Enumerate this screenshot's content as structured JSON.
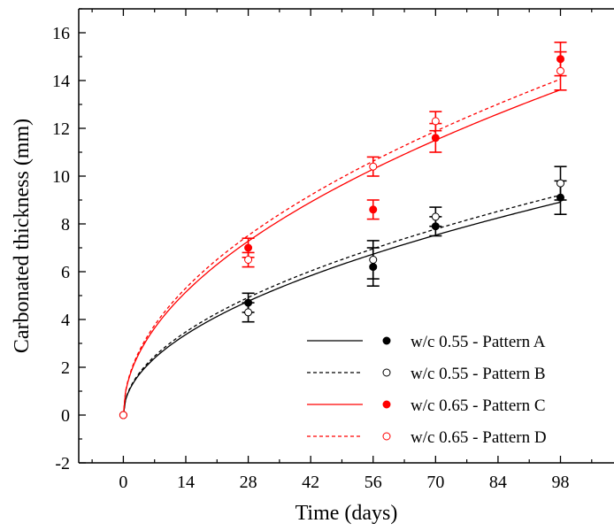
{
  "chart_data": {
    "type": "scatter",
    "xlabel": "Time (days)",
    "ylabel": "Carbonated thickness (mm)",
    "xlim": [
      -10,
      110
    ],
    "ylim": [
      -2,
      17
    ],
    "xticks": [
      0,
      14,
      28,
      42,
      56,
      70,
      84,
      98
    ],
    "yticks": [
      -2,
      0,
      2,
      4,
      6,
      8,
      10,
      12,
      14,
      16
    ],
    "grid": false,
    "legend_position": "bottom-right",
    "series": [
      {
        "name": "w/c 0.55 - Pattern A",
        "color": "#000000",
        "marker": "filled-circle",
        "line": "solid",
        "points": [
          {
            "x": 0,
            "y": 0
          },
          {
            "x": 28,
            "y": 4.7,
            "err": 0.4
          },
          {
            "x": 56,
            "y": 6.2,
            "err": 0.8
          },
          {
            "x": 70,
            "y": 7.9,
            "err": 0.4
          },
          {
            "x": 98,
            "y": 9.1,
            "err": 0.7
          }
        ],
        "fit": {
          "type": "sqrt",
          "k": 0.9
        }
      },
      {
        "name": "w/c 0.55 - Pattern B",
        "color": "#000000",
        "marker": "open-circle",
        "line": "dashed",
        "points": [
          {
            "x": 0,
            "y": 0
          },
          {
            "x": 28,
            "y": 4.3,
            "err": 0.4
          },
          {
            "x": 56,
            "y": 6.5,
            "err": 0.8
          },
          {
            "x": 70,
            "y": 8.3,
            "err": 0.4
          },
          {
            "x": 98,
            "y": 9.7,
            "err": 0.7
          }
        ],
        "fit": {
          "type": "sqrt",
          "k": 0.93
        }
      },
      {
        "name": "w/c 0.65 - Pattern C",
        "color": "#ff0000",
        "marker": "filled-circle",
        "line": "solid",
        "points": [
          {
            "x": 0,
            "y": 0
          },
          {
            "x": 28,
            "y": 7.0,
            "err": 0.4
          },
          {
            "x": 56,
            "y": 8.6,
            "err": 0.4
          },
          {
            "x": 70,
            "y": 11.6,
            "err": 0.6
          },
          {
            "x": 98,
            "y": 14.9,
            "err": 0.7
          }
        ],
        "fit": {
          "type": "sqrt",
          "k": 1.375
        }
      },
      {
        "name": "w/c 0.65 - Pattern D",
        "color": "#ff0000",
        "marker": "open-circle",
        "line": "dashed",
        "points": [
          {
            "x": 0,
            "y": 0
          },
          {
            "x": 28,
            "y": 6.5,
            "err": 0.3
          },
          {
            "x": 56,
            "y": 10.4,
            "err": 0.4
          },
          {
            "x": 70,
            "y": 12.3,
            "err": 0.4
          },
          {
            "x": 98,
            "y": 14.4,
            "err": 0.8
          }
        ],
        "fit": {
          "type": "sqrt",
          "k": 1.42
        }
      }
    ]
  }
}
